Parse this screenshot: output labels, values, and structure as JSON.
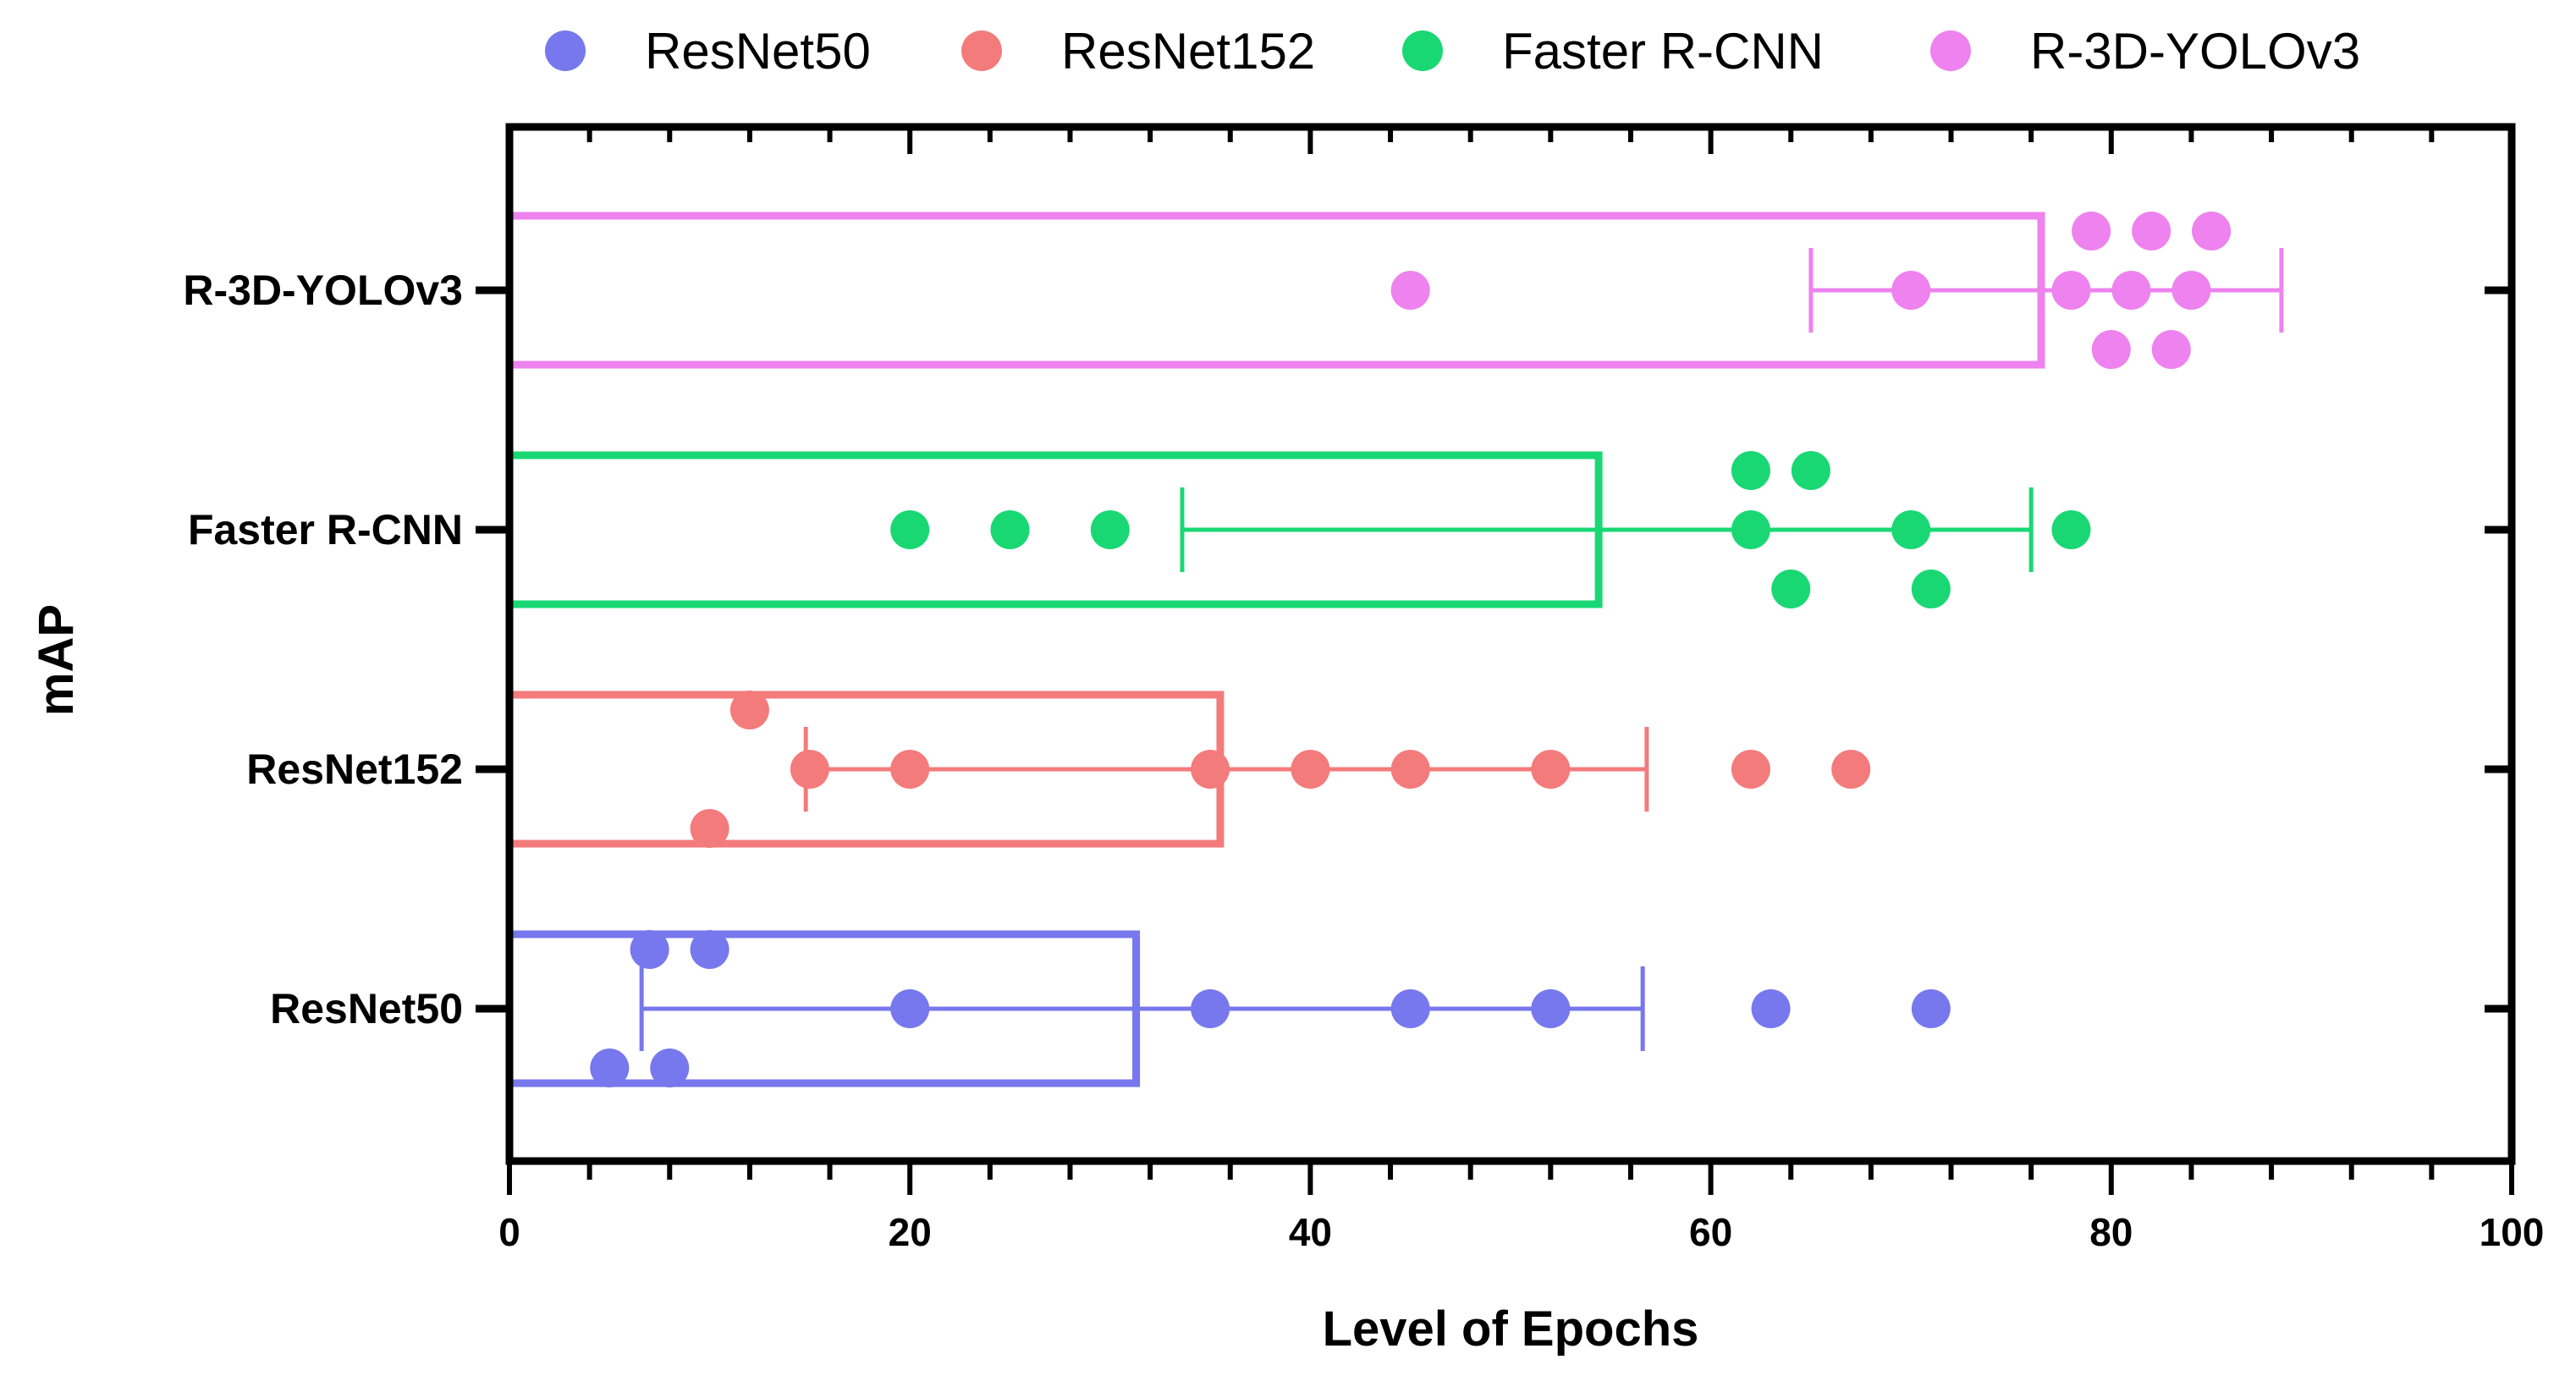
{
  "chart_data": {
    "type": "bar",
    "orientation": "horizontal",
    "xlabel": "Level of Epochs",
    "ylabel": "mAP",
    "xlim": [
      0,
      100
    ],
    "xticks": [
      "0",
      "20",
      "40",
      "60",
      "80",
      "100"
    ],
    "legend_position": "top",
    "categories": [
      "ResNet50",
      "ResNet152",
      "Faster R-CNN",
      "R-3D-YOLOv3"
    ],
    "series": [
      {
        "name": "ResNet50",
        "color": "#7777ee",
        "mean": 31.3,
        "error_low": 6.6,
        "error_high": 56.6,
        "points": [
          [
            7,
            1
          ],
          [
            10,
            1
          ],
          [
            20,
            0
          ],
          [
            35,
            0
          ],
          [
            45,
            0
          ],
          [
            52,
            0
          ],
          [
            63,
            0
          ],
          [
            71,
            0
          ],
          [
            5,
            -1
          ],
          [
            8,
            -1
          ]
        ]
      },
      {
        "name": "ResNet152",
        "color": "#f47b7b",
        "mean": 35.5,
        "error_low": 14.8,
        "error_high": 56.8,
        "points": [
          [
            12,
            1
          ],
          [
            15,
            0
          ],
          [
            20,
            0
          ],
          [
            35,
            0
          ],
          [
            40,
            0
          ],
          [
            45,
            0
          ],
          [
            52,
            0
          ],
          [
            62,
            0
          ],
          [
            67,
            0
          ],
          [
            10,
            -1
          ]
        ]
      },
      {
        "name": "Faster R-CNN",
        "color": "#19d873",
        "mean": 54.4,
        "error_low": 33.6,
        "error_high": 76,
        "points": [
          [
            62,
            1
          ],
          [
            65,
            1
          ],
          [
            20,
            0
          ],
          [
            25,
            0
          ],
          [
            30,
            0
          ],
          [
            62,
            0
          ],
          [
            70,
            0
          ],
          [
            78,
            0
          ],
          [
            64,
            -1
          ],
          [
            71,
            -1
          ]
        ]
      },
      {
        "name": "R-3D-YOLOv3",
        "color": "#ee82ee",
        "mean": 76.5,
        "error_low": 65,
        "error_high": 88.5,
        "points": [
          [
            79,
            1
          ],
          [
            82,
            1
          ],
          [
            85,
            1
          ],
          [
            45,
            0
          ],
          [
            70,
            0
          ],
          [
            78,
            0
          ],
          [
            81,
            0
          ],
          [
            84,
            0
          ],
          [
            80,
            -1
          ],
          [
            83,
            -1
          ]
        ]
      }
    ]
  }
}
